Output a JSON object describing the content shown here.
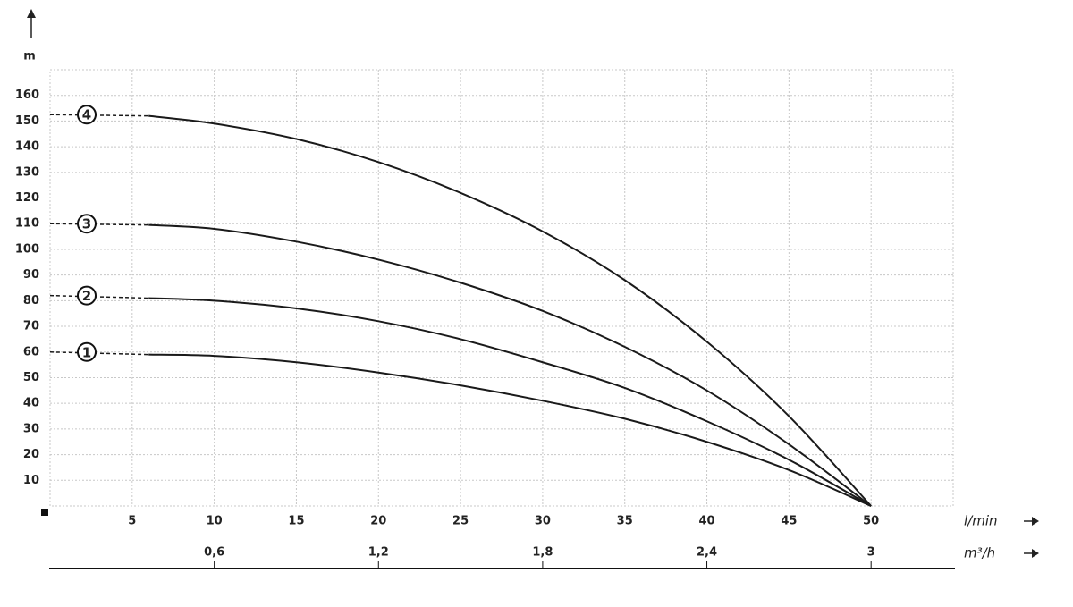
{
  "chart_data": {
    "type": "line",
    "ylabel": "m",
    "xlabel": "l/min",
    "x2label": "m³/h",
    "x": [
      0,
      6,
      10,
      15,
      20,
      25,
      30,
      35,
      40,
      45,
      50
    ],
    "series": [
      {
        "name": "1",
        "color": "#1a1a1a",
        "values": [
          60,
          59,
          58.5,
          56,
          52,
          47,
          41,
          34,
          25,
          14,
          0
        ]
      },
      {
        "name": "2",
        "color": "#1a1a1a",
        "values": [
          82,
          81,
          80,
          77,
          72,
          65,
          56,
          46,
          33,
          18,
          0
        ]
      },
      {
        "name": "3",
        "color": "#1a1a1a",
        "values": [
          110,
          109.5,
          108,
          103,
          96,
          87,
          76,
          62,
          45,
          24,
          0
        ]
      },
      {
        "name": "4",
        "color": "#1a1a1a",
        "values": [
          152.5,
          152,
          149,
          143,
          134,
          122,
          107,
          88,
          64,
          35,
          0
        ]
      }
    ],
    "xlim": [
      0,
      55
    ],
    "xticks": [
      5,
      10,
      15,
      20,
      25,
      30,
      35,
      40,
      45,
      50
    ],
    "x2lim": [
      0,
      3.3
    ],
    "x2ticks": [
      {
        "value": 0.6,
        "label": "0,6"
      },
      {
        "value": 1.2,
        "label": "1,2"
      },
      {
        "value": 1.8,
        "label": "1,8"
      },
      {
        "value": 2.4,
        "label": "2,4"
      },
      3
    ],
    "ylim": [
      0,
      170
    ],
    "yticks": [
      10,
      20,
      30,
      40,
      50,
      60,
      70,
      80,
      90,
      100,
      110,
      120,
      130,
      140,
      150,
      160
    ],
    "grid": true
  }
}
